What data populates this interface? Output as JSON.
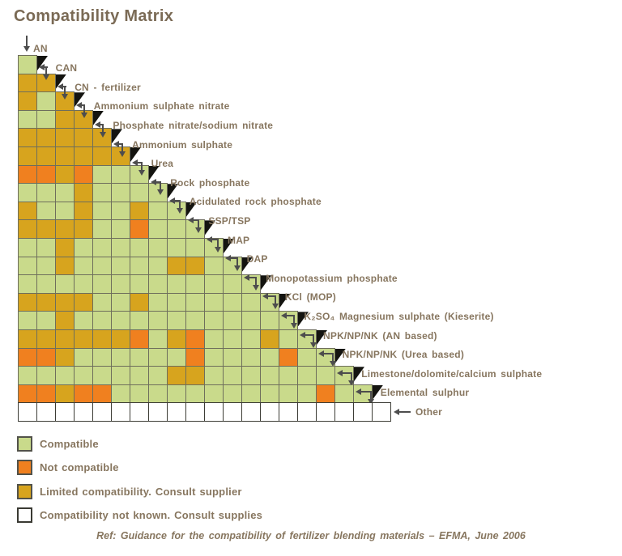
{
  "title": "Compatibility Matrix",
  "footer": "Ref: Guidance for the compatibility of fertilizer blending materials – EFMA, June 2006",
  "legend": [
    {
      "code": "C",
      "label": "Compatible",
      "color": "#c9da8b"
    },
    {
      "code": "N",
      "label": "Not compatible",
      "color": "#f0801f"
    },
    {
      "code": "L",
      "label": "Limited compatibility. Consult supplier",
      "color": "#d7a41e"
    },
    {
      "code": "U",
      "label": "Compatibility not known. Consult supplies",
      "color": "#ffffff"
    }
  ],
  "chart_data": {
    "type": "heatmap",
    "description": "Lower-triangular fertilizer blending compatibility matrix; cell (row k, col j) gives compatibility of material k with material j (columns use the same material order as rows).",
    "materials": [
      "AN",
      "CAN",
      "CN - fertilizer",
      "Ammonium sulphate nitrate",
      "Phosphate nitrate/sodium nitrate",
      "Ammonium sulphate",
      "Urea",
      "Rock phosphate",
      "Acidulated rock phosphate",
      "SSP/TSP",
      "MAP",
      "DAP",
      "Monopotassium phosphate",
      "KCl (MOP)",
      "K₂SO₄ Magnesium sulphate (Kieserite)",
      "NPK/NP/NK (AN based)",
      "NPK/NP/NK (Urea based)",
      "Limestone/dolomite/calcium sulphate",
      "Elemental sulphur",
      "Other"
    ],
    "codes": {
      "C": "Compatible",
      "N": "Not compatible",
      "L": "Limited compatibility. Consult supplier",
      "U": "Compatibility not known. Consult supplies"
    },
    "rows": [
      [
        "C"
      ],
      [
        "L",
        "L"
      ],
      [
        "L",
        "C",
        "L"
      ],
      [
        "C",
        "C",
        "L",
        "L"
      ],
      [
        "L",
        "L",
        "L",
        "L",
        "L"
      ],
      [
        "L",
        "L",
        "L",
        "L",
        "L",
        "L"
      ],
      [
        "N",
        "N",
        "L",
        "N",
        "C",
        "C",
        "C"
      ],
      [
        "C",
        "C",
        "C",
        "L",
        "C",
        "C",
        "C",
        "C"
      ],
      [
        "L",
        "C",
        "C",
        "L",
        "C",
        "C",
        "L",
        "C",
        "C"
      ],
      [
        "L",
        "L",
        "L",
        "L",
        "C",
        "C",
        "N",
        "C",
        "C",
        "C"
      ],
      [
        "C",
        "C",
        "L",
        "C",
        "C",
        "C",
        "C",
        "C",
        "C",
        "C",
        "C"
      ],
      [
        "C",
        "C",
        "L",
        "C",
        "C",
        "C",
        "C",
        "C",
        "L",
        "L",
        "C",
        "C"
      ],
      [
        "C",
        "C",
        "C",
        "C",
        "C",
        "C",
        "C",
        "C",
        "C",
        "C",
        "C",
        "C",
        "C"
      ],
      [
        "L",
        "L",
        "L",
        "L",
        "C",
        "C",
        "L",
        "C",
        "C",
        "C",
        "C",
        "C",
        "C",
        "C"
      ],
      [
        "C",
        "C",
        "L",
        "C",
        "C",
        "C",
        "C",
        "C",
        "C",
        "C",
        "C",
        "C",
        "C",
        "C",
        "C"
      ],
      [
        "L",
        "L",
        "L",
        "L",
        "L",
        "L",
        "N",
        "C",
        "L",
        "N",
        "C",
        "C",
        "C",
        "L",
        "C",
        "C"
      ],
      [
        "N",
        "N",
        "L",
        "C",
        "C",
        "C",
        "C",
        "C",
        "C",
        "N",
        "C",
        "C",
        "C",
        "C",
        "N",
        "C",
        "C"
      ],
      [
        "C",
        "C",
        "C",
        "C",
        "C",
        "C",
        "C",
        "C",
        "L",
        "L",
        "C",
        "C",
        "C",
        "C",
        "C",
        "C",
        "C",
        "C"
      ],
      [
        "N",
        "N",
        "L",
        "N",
        "N",
        "C",
        "C",
        "C",
        "C",
        "C",
        "C",
        "C",
        "C",
        "C",
        "C",
        "C",
        "N",
        "C",
        "C"
      ],
      [
        "U",
        "U",
        "U",
        "U",
        "U",
        "U",
        "U",
        "U",
        "U",
        "U",
        "U",
        "U",
        "U",
        "U",
        "U",
        "U",
        "U",
        "U",
        "U",
        "U"
      ]
    ]
  }
}
